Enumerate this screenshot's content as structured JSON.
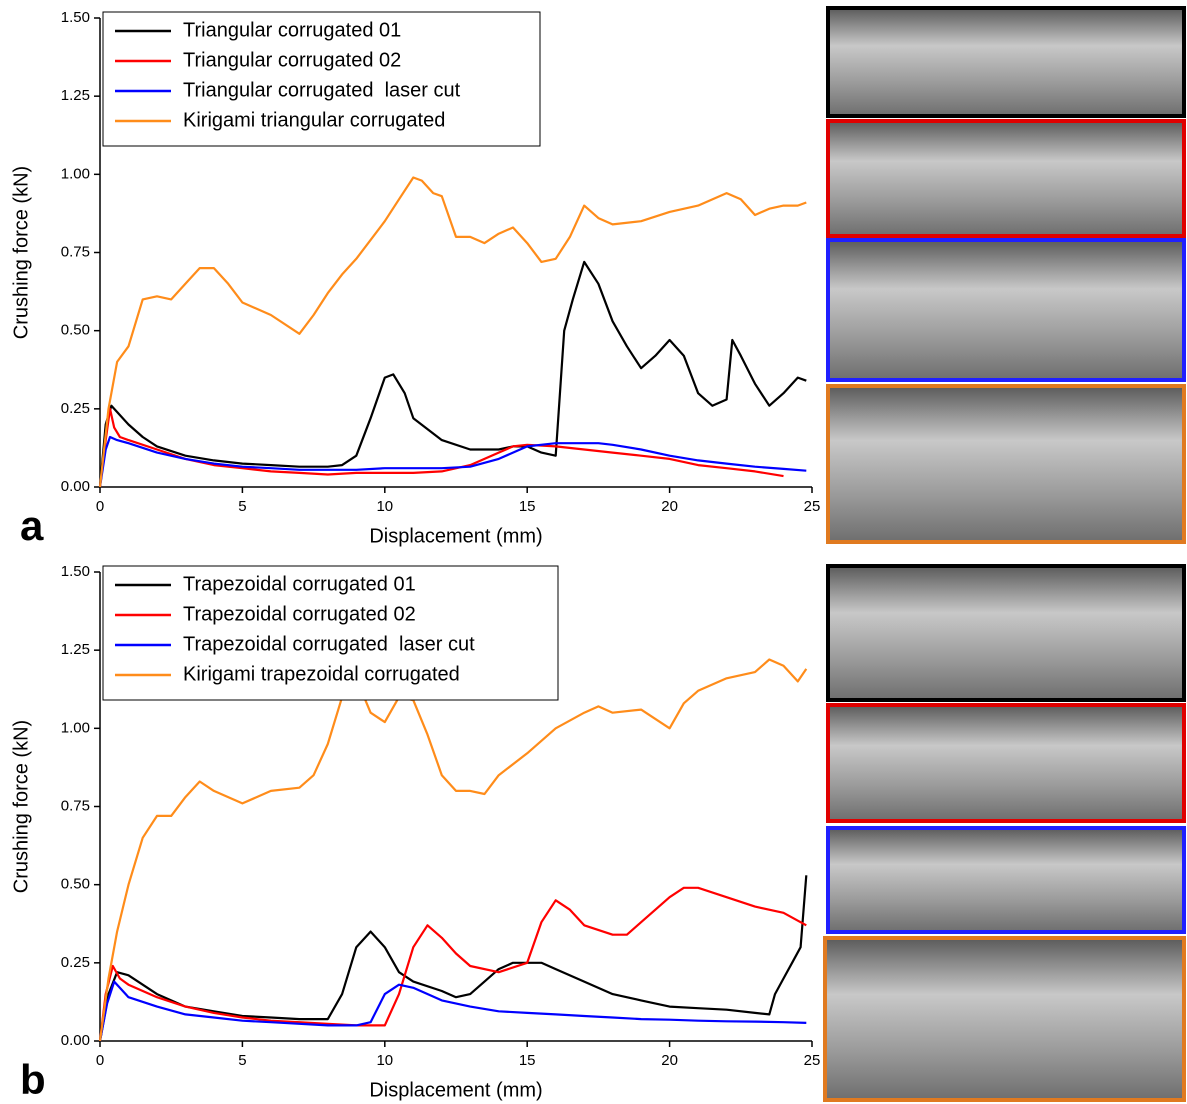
{
  "chart_data": [
    {
      "type": "line",
      "panel_label": "a",
      "x_label": "Displacement (mm)",
      "y_label": "Crushing force (kN)",
      "xlim": [
        0,
        25
      ],
      "xticks": [
        0,
        5,
        10,
        15,
        20,
        25
      ],
      "ylim": [
        0,
        1.5
      ],
      "yticks": [
        {
          "value": 0,
          "label": "0.00"
        },
        {
          "value": 0.25,
          "label": "0.25"
        },
        {
          "value": 0.5,
          "label": "0.50"
        },
        {
          "value": 0.75,
          "label": "0.75"
        },
        {
          "value": 1,
          "label": "1.00"
        },
        {
          "value": 1.25,
          "label": "1.25"
        },
        {
          "value": 1.5,
          "label": "1.50"
        }
      ],
      "legend": "upper left",
      "series": [
        {
          "name": "Triangular corrugated 01",
          "color": "#000000",
          "x": [
            0,
            0.2,
            0.4,
            0.6,
            1,
            1.5,
            2,
            3,
            4,
            5,
            6,
            7,
            8,
            8.5,
            9,
            9.5,
            10,
            10.3,
            10.7,
            11,
            12,
            13,
            14,
            14.5,
            15,
            15.5,
            16,
            16.3,
            16.6,
            17,
            17.5,
            18,
            18.5,
            19,
            19.5,
            20,
            20.5,
            21,
            21.5,
            22,
            22.2,
            22.5,
            23,
            23.5,
            24,
            24.5,
            24.8
          ],
          "values": [
            0,
            0.2,
            0.26,
            0.24,
            0.2,
            0.16,
            0.13,
            0.1,
            0.085,
            0.075,
            0.07,
            0.065,
            0.065,
            0.07,
            0.1,
            0.22,
            0.35,
            0.36,
            0.3,
            0.22,
            0.15,
            0.12,
            0.12,
            0.13,
            0.13,
            0.11,
            0.1,
            0.5,
            0.6,
            0.72,
            0.65,
            0.53,
            0.45,
            0.38,
            0.42,
            0.47,
            0.42,
            0.3,
            0.26,
            0.28,
            0.47,
            0.42,
            0.33,
            0.26,
            0.3,
            0.35,
            0.34
          ]
        },
        {
          "name": "Triangular corrugated 02",
          "color": "#ff0000",
          "x": [
            0,
            0.2,
            0.35,
            0.5,
            0.7,
            1,
            2,
            3,
            4,
            5,
            6,
            7,
            8,
            9,
            10,
            11,
            12,
            13,
            14,
            14.5,
            15,
            16,
            17,
            18,
            19,
            20,
            21,
            22,
            23,
            24
          ],
          "values": [
            0,
            0.15,
            0.25,
            0.19,
            0.16,
            0.15,
            0.12,
            0.09,
            0.07,
            0.06,
            0.05,
            0.045,
            0.04,
            0.045,
            0.045,
            0.045,
            0.05,
            0.07,
            0.11,
            0.13,
            0.135,
            0.13,
            0.12,
            0.11,
            0.1,
            0.09,
            0.07,
            0.06,
            0.05,
            0.035
          ]
        },
        {
          "name": "Triangular corrugated  laser cut",
          "color": "#0000ff",
          "x": [
            0,
            0.2,
            0.35,
            0.6,
            1,
            2,
            3,
            4,
            5,
            6,
            7,
            8,
            9,
            10,
            11,
            12,
            13,
            14,
            15,
            16,
            17,
            17.5,
            18,
            19,
            20,
            21,
            22,
            23,
            24,
            24.8
          ],
          "values": [
            0,
            0.12,
            0.16,
            0.15,
            0.14,
            0.11,
            0.09,
            0.075,
            0.065,
            0.06,
            0.055,
            0.055,
            0.055,
            0.06,
            0.06,
            0.06,
            0.065,
            0.09,
            0.13,
            0.14,
            0.14,
            0.14,
            0.135,
            0.12,
            0.1,
            0.085,
            0.075,
            0.065,
            0.058,
            0.052
          ]
        },
        {
          "name": "Kirigami triangular corrugated",
          "color": "#ff8c1a",
          "x": [
            0,
            0.3,
            0.6,
            1,
            1.5,
            2,
            2.5,
            3,
            3.5,
            4,
            4.5,
            5,
            6,
            7,
            7.5,
            8,
            8.5,
            9,
            10,
            10.5,
            11,
            11.3,
            11.7,
            12,
            12.5,
            13,
            13.5,
            14,
            14.5,
            15,
            15.5,
            16,
            16.5,
            17,
            17.5,
            18,
            19,
            20,
            21,
            22,
            22.5,
            23,
            23.5,
            24,
            24.5,
            24.8
          ],
          "values": [
            0,
            0.25,
            0.4,
            0.45,
            0.6,
            0.61,
            0.6,
            0.65,
            0.7,
            0.7,
            0.65,
            0.59,
            0.55,
            0.49,
            0.55,
            0.62,
            0.68,
            0.73,
            0.85,
            0.92,
            0.99,
            0.98,
            0.94,
            0.93,
            0.8,
            0.8,
            0.78,
            0.81,
            0.83,
            0.78,
            0.72,
            0.73,
            0.8,
            0.9,
            0.86,
            0.84,
            0.85,
            0.88,
            0.9,
            0.94,
            0.92,
            0.87,
            0.89,
            0.9,
            0.9,
            0.91
          ]
        }
      ]
    },
    {
      "type": "line",
      "panel_label": "b",
      "x_label": "Displacement (mm)",
      "y_label": "Crushing force (kN)",
      "xlim": [
        0,
        25
      ],
      "xticks": [
        0,
        5,
        10,
        15,
        20,
        25
      ],
      "ylim": [
        0,
        1.5
      ],
      "yticks": [
        {
          "value": 0,
          "label": "0.00"
        },
        {
          "value": 0.25,
          "label": "0.25"
        },
        {
          "value": 0.5,
          "label": "0.50"
        },
        {
          "value": 0.75,
          "label": "0.75"
        },
        {
          "value": 1,
          "label": "1.00"
        },
        {
          "value": 1.25,
          "label": "1.25"
        },
        {
          "value": 1.5,
          "label": "1.50"
        }
      ],
      "legend": "upper left",
      "series": [
        {
          "name": "Trapezoidal corrugated 01",
          "color": "#000000",
          "x": [
            0,
            0.3,
            0.6,
            1,
            2,
            3,
            4,
            5,
            6,
            7,
            8,
            8.5,
            9,
            9.5,
            10,
            10.5,
            11,
            12,
            12.5,
            13,
            13.5,
            14,
            14.5,
            15,
            15.5,
            16,
            17,
            18,
            19,
            20,
            21,
            22,
            23,
            23.5,
            23.7,
            24,
            24.3,
            24.6,
            24.8
          ],
          "values": [
            0,
            0.15,
            0.22,
            0.21,
            0.15,
            0.11,
            0.095,
            0.08,
            0.075,
            0.07,
            0.07,
            0.15,
            0.3,
            0.35,
            0.3,
            0.22,
            0.19,
            0.16,
            0.14,
            0.15,
            0.19,
            0.23,
            0.25,
            0.25,
            0.25,
            0.23,
            0.19,
            0.15,
            0.13,
            0.11,
            0.105,
            0.1,
            0.09,
            0.085,
            0.15,
            0.2,
            0.25,
            0.3,
            0.53
          ]
        },
        {
          "name": "Trapezoidal corrugated 02",
          "color": "#ff0000",
          "x": [
            0,
            0.2,
            0.45,
            0.7,
            1,
            2,
            3,
            4,
            5,
            6,
            7,
            8,
            9,
            9.5,
            10,
            10.5,
            11,
            11.5,
            12,
            12.5,
            13,
            14,
            15,
            15.5,
            16,
            16.5,
            17,
            18,
            18.5,
            19,
            20,
            20.5,
            21,
            22,
            23,
            24,
            24.8
          ],
          "values": [
            0,
            0.15,
            0.24,
            0.2,
            0.18,
            0.14,
            0.11,
            0.09,
            0.075,
            0.065,
            0.06,
            0.055,
            0.05,
            0.05,
            0.05,
            0.15,
            0.3,
            0.37,
            0.33,
            0.28,
            0.24,
            0.22,
            0.25,
            0.38,
            0.45,
            0.42,
            0.37,
            0.34,
            0.34,
            0.38,
            0.46,
            0.49,
            0.49,
            0.46,
            0.43,
            0.41,
            0.37
          ]
        },
        {
          "name": "Trapezoidal corrugated  laser cut",
          "color": "#0000ff",
          "x": [
            0,
            0.25,
            0.5,
            0.8,
            1,
            2,
            3,
            4,
            5,
            6,
            7,
            8,
            9,
            9.5,
            10,
            10.5,
            11,
            12,
            13,
            14,
            15,
            16,
            17,
            18,
            19,
            20,
            21,
            22,
            23,
            24,
            24.8
          ],
          "values": [
            0,
            0.12,
            0.19,
            0.16,
            0.14,
            0.11,
            0.085,
            0.075,
            0.065,
            0.06,
            0.055,
            0.05,
            0.05,
            0.06,
            0.15,
            0.18,
            0.17,
            0.13,
            0.11,
            0.095,
            0.09,
            0.085,
            0.08,
            0.075,
            0.07,
            0.068,
            0.065,
            0.063,
            0.062,
            0.06,
            0.058
          ]
        },
        {
          "name": "Kirigami trapezoidal corrugated",
          "color": "#ff8c1a",
          "x": [
            0,
            0.3,
            0.6,
            1,
            1.5,
            2,
            2.5,
            3,
            3.5,
            4,
            5,
            6,
            7,
            7.5,
            8,
            8.5,
            8.8,
            9,
            9.5,
            10,
            10.5,
            11,
            11.5,
            12,
            12.5,
            13,
            13.5,
            14,
            15,
            16,
            17,
            17.5,
            18,
            19,
            20,
            20.5,
            21,
            22,
            23,
            23.5,
            24,
            24.5,
            24.8
          ],
          "values": [
            0,
            0.2,
            0.35,
            0.5,
            0.65,
            0.72,
            0.72,
            0.78,
            0.83,
            0.8,
            0.76,
            0.8,
            0.81,
            0.85,
            0.95,
            1.1,
            1.17,
            1.16,
            1.05,
            1.02,
            1.1,
            1.09,
            0.98,
            0.85,
            0.8,
            0.8,
            0.79,
            0.85,
            0.92,
            1.0,
            1.05,
            1.07,
            1.05,
            1.06,
            1.0,
            1.08,
            1.12,
            1.16,
            1.18,
            1.22,
            1.2,
            1.15,
            1.19
          ]
        }
      ]
    }
  ]
}
